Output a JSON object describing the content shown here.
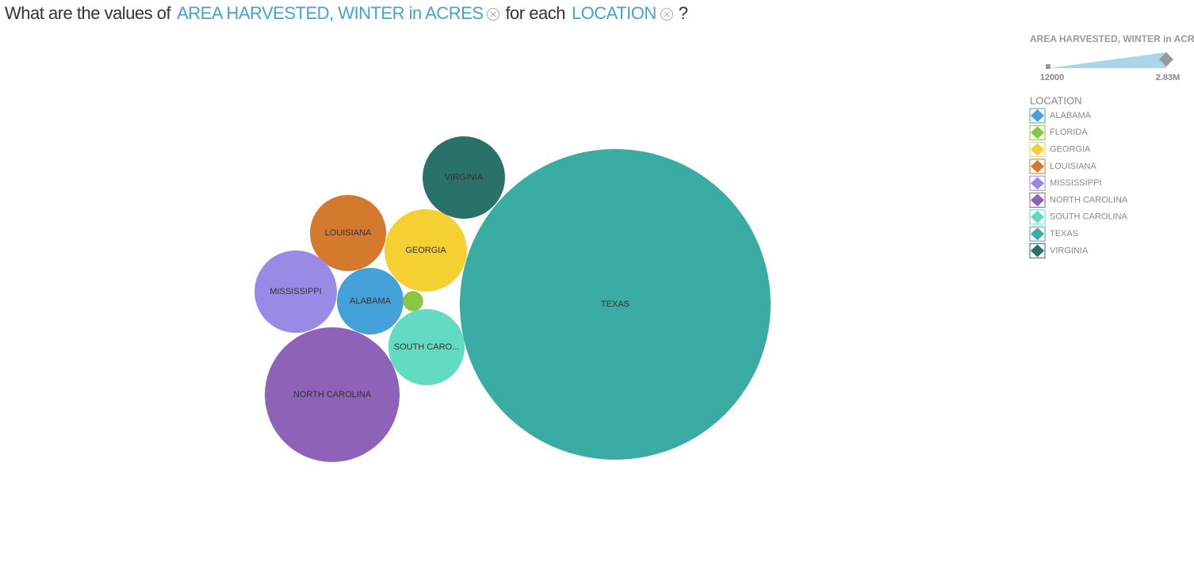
{
  "chart_data": {
    "type": "bubble",
    "question": {
      "prefix": "What are the values of",
      "measure": "AREA HARVESTED, WINTER in ACRES",
      "middle": "for each",
      "dimension": "LOCATION",
      "suffix": "?"
    },
    "categories": [
      "ALABAMA",
      "FLORIDA",
      "GEORGIA",
      "LOUISIANA",
      "MISSISSIPPI",
      "NORTH CAROLINA",
      "SOUTH CAROLINA",
      "TEXAS",
      "VIRGINIA"
    ],
    "labels": [
      "ALABAMA",
      null,
      "GEORGIA",
      "LOUISIANA",
      "MISSISSIPPI",
      "NORTH CAROLINA",
      "SOUTH CARO...",
      "TEXAS",
      "VIRGINIA"
    ],
    "values": [
      130000,
      12000,
      199000,
      170000,
      199000,
      532000,
      170000,
      2830000,
      199000
    ],
    "colors": [
      "#45a2d9",
      "#8cc63f",
      "#f5d033",
      "#d37a2e",
      "#9b89e6",
      "#8e62b9",
      "#62dbc2",
      "#3aaca3",
      "#2a7269"
    ],
    "size_legend": {
      "title": "AREA HARVESTED, WINTER in ACRES",
      "min": 12000,
      "max": {
        "value": 2830000,
        "label": "2.83M"
      }
    },
    "color_legend_title": "LOCATION"
  }
}
